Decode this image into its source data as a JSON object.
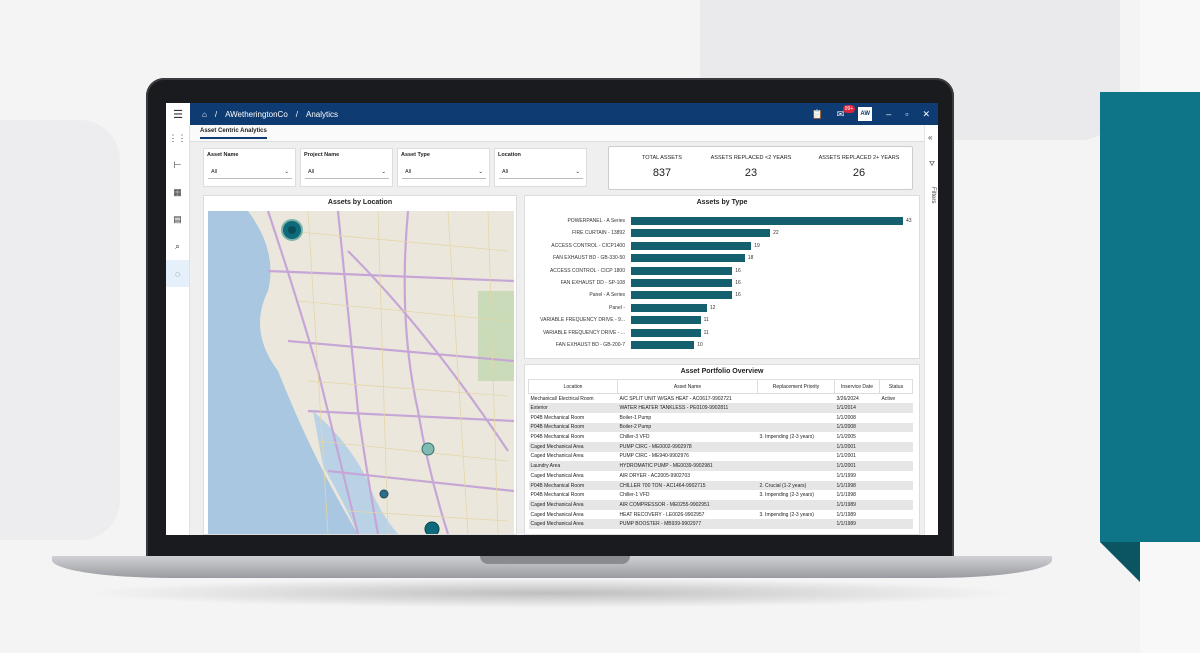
{
  "topbar": {
    "breadcrumb": [
      "AWetheringtonCo",
      "Analytics"
    ],
    "separator": "/",
    "notif_badge": "99+",
    "avatar_initials": "AW"
  },
  "tab": {
    "label": "Asset Centric Analytics"
  },
  "filters_label": "Filters",
  "slicers": [
    {
      "label": "Asset Name",
      "value": "All"
    },
    {
      "label": "Project Name",
      "value": "All"
    },
    {
      "label": "Asset Type",
      "value": "All"
    },
    {
      "label": "Location",
      "value": "All"
    }
  ],
  "kpis": [
    {
      "title": "TOTAL ASSETS",
      "value": "837"
    },
    {
      "title": "ASSETS REPLACED <2 YEARS",
      "value": "23"
    },
    {
      "title": "ASSETS REPLACED 2+ YEARS",
      "value": "26"
    }
  ],
  "map_panel": {
    "title": "Assets by Location"
  },
  "type_panel": {
    "title": "Assets by Type"
  },
  "chart_data": {
    "type": "bar",
    "categories": [
      "POWERPANEL - A Series",
      "FIRE CURTAIN - 13892",
      "ACCESS CONTROL - CICP1400",
      "FAN EXHAUST BD - GB-330-50",
      "ACCESS CONTROL - CICP 1800",
      "FAN EXHAUST DD - SP-108",
      "Panel - A Series",
      "Panel -",
      "VARIABLE FREQUENCY DRIVE - 9...",
      "VARIABLE FREQUENCY DRIVE - ...",
      "FAN EXHAUST BD - GB-200-7"
    ],
    "values": [
      43,
      22,
      19,
      18,
      16,
      16,
      16,
      12,
      11,
      11,
      10
    ],
    "title": "Assets by Type"
  },
  "table_panel": {
    "title": "Asset Portfolio Overview",
    "columns": [
      "Location",
      "Asset Name",
      "Replacement Priority",
      "Inservice Date",
      "Status"
    ],
    "rows": [
      [
        "Mechanical/ Electrical Room",
        "A/C SPLIT UNIT W/GAS HEAT - AC0617-9902721",
        "",
        "3/26/2024",
        "Active"
      ],
      [
        "Exterior",
        "WATER HEATER TANKLESS - PE0109-9902811",
        "",
        "1/1/2014",
        ""
      ],
      [
        "P04B Mechanical Room",
        "Boiler-1 Pump",
        "",
        "1/1/2008",
        ""
      ],
      [
        "P04B Mechanical Room",
        "Boiler-2 Pump",
        "",
        "1/1/2008",
        ""
      ],
      [
        "P04B Mechanical Room",
        "Chiller-3 VFD",
        "3. Impending (2-3 years)",
        "1/1/2005",
        ""
      ],
      [
        "Caged Mechanical Area",
        "PUMP CIRC - ME0002-9902978",
        "",
        "1/1/2001",
        ""
      ],
      [
        "Caged Mechanical Area",
        "PUMP CIRC - ME940-9902976",
        "",
        "1/1/2001",
        ""
      ],
      [
        "Laundry Area",
        "HYDROMATIC PUMP - ME0039-9902981",
        "",
        "1/1/2001",
        ""
      ],
      [
        "Caged Mechanical Area",
        "AIR DRYER - AC2005-9902703",
        "",
        "1/1/1999",
        ""
      ],
      [
        "P04B Mechanical Room",
        "CHILLER 700 TON - AC1464-9902715",
        "2. Crucial (1-2 years)",
        "1/1/1998",
        ""
      ],
      [
        "P04B Mechanical Room",
        "Chiller-1 VFD",
        "3. Impending (2-3 years)",
        "1/1/1998",
        ""
      ],
      [
        "Caged Mechanical Area",
        "AIR COMPRESSOR - ME0255-9902951",
        "",
        "1/1/1989",
        ""
      ],
      [
        "Caged Mechanical Area",
        "HEAT RECOVERY - LE0026-9902957",
        "3. Impending (2-3 years)",
        "1/1/1989",
        ""
      ],
      [
        "Caged Mechanical Area",
        "PUMP BOOSTER - MB939-9902977",
        "",
        "1/1/1989",
        ""
      ]
    ]
  }
}
